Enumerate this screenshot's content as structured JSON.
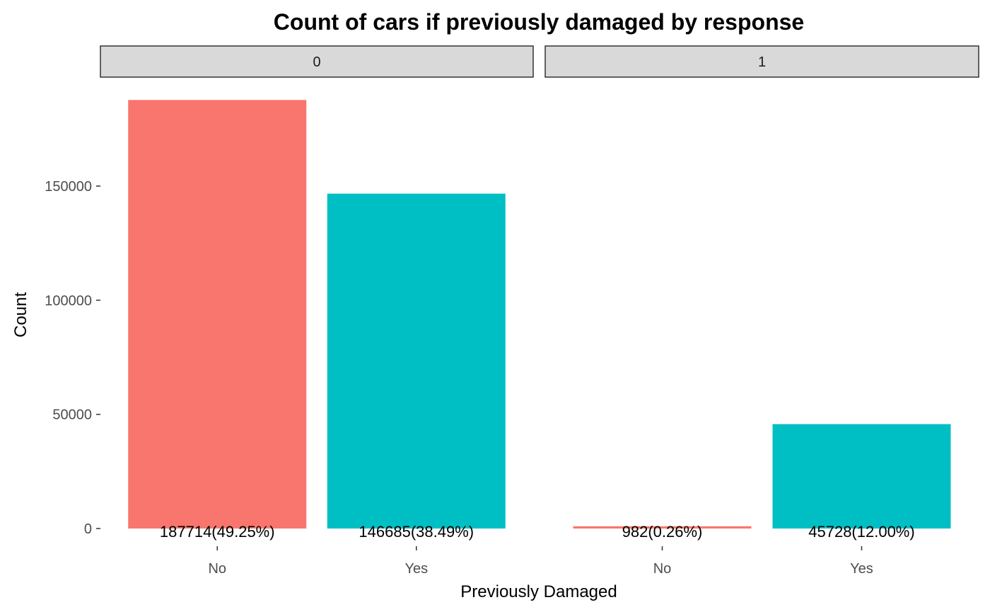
{
  "chart_data": {
    "type": "bar",
    "title": "Count of cars if previously damaged by response",
    "xlabel": "Previously Damaged",
    "ylabel": "Count",
    "ylim": [
      0,
      190000
    ],
    "yticks": [
      0,
      50000,
      100000,
      150000
    ],
    "ytick_labels": [
      "0",
      "50000",
      "100000",
      "150000"
    ],
    "grid": false,
    "legend": "none",
    "categories": [
      "No",
      "Yes"
    ],
    "colors": {
      "No": "#F8766D",
      "Yes": "#00BFC4"
    },
    "facets": [
      {
        "label": "0",
        "bars": [
          {
            "category": "No",
            "value": 187714,
            "label": "187714(49.25%)"
          },
          {
            "category": "Yes",
            "value": 146685,
            "label": "146685(38.49%)"
          }
        ]
      },
      {
        "label": "1",
        "bars": [
          {
            "category": "No",
            "value": 982,
            "label": "982(0.26%)"
          },
          {
            "category": "Yes",
            "value": 45728,
            "label": "45728(12.00%)"
          }
        ]
      }
    ]
  }
}
